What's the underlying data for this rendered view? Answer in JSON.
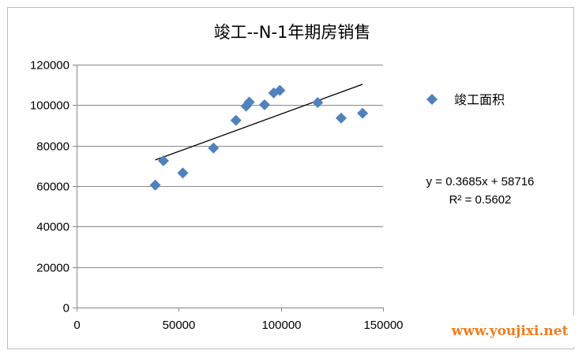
{
  "chart_data": {
    "type": "scatter",
    "title": "竣工--N-1年期房销售",
    "xlabel": "",
    "ylabel": "",
    "xlim": [
      0,
      150000
    ],
    "ylim": [
      0,
      120000
    ],
    "x_ticks": [
      0,
      50000,
      100000,
      150000
    ],
    "y_ticks": [
      0,
      20000,
      40000,
      60000,
      80000,
      100000,
      120000
    ],
    "x_tick_labels": [
      "0",
      "50000",
      "100000",
      "150000"
    ],
    "y_tick_labels": [
      "0",
      "20000",
      "40000",
      "60000",
      "80000",
      "100000",
      "120000"
    ],
    "grid": "horizontal",
    "legend_position": "right",
    "series": [
      {
        "name": "竣工面积",
        "color": "#4f81bd",
        "marker": "diamond",
        "points": [
          [
            38500,
            60500
          ],
          [
            42500,
            72500
          ],
          [
            52000,
            66500
          ],
          [
            67000,
            78800
          ],
          [
            78000,
            92500
          ],
          [
            83000,
            99500
          ],
          [
            84500,
            101500
          ],
          [
            92000,
            100200
          ],
          [
            96500,
            106000
          ],
          [
            99500,
            107300
          ],
          [
            118000,
            101300
          ],
          [
            129500,
            93600
          ],
          [
            140000,
            96000
          ]
        ]
      }
    ],
    "trendline": {
      "slope": 0.3685,
      "intercept": 58716,
      "x_start": 38500,
      "x_end": 140000,
      "color": "#000000",
      "equation": "y = 0.3685x + 58716",
      "r2_label": "R² = 0.5602"
    }
  },
  "watermark": "www.youjixi.net"
}
